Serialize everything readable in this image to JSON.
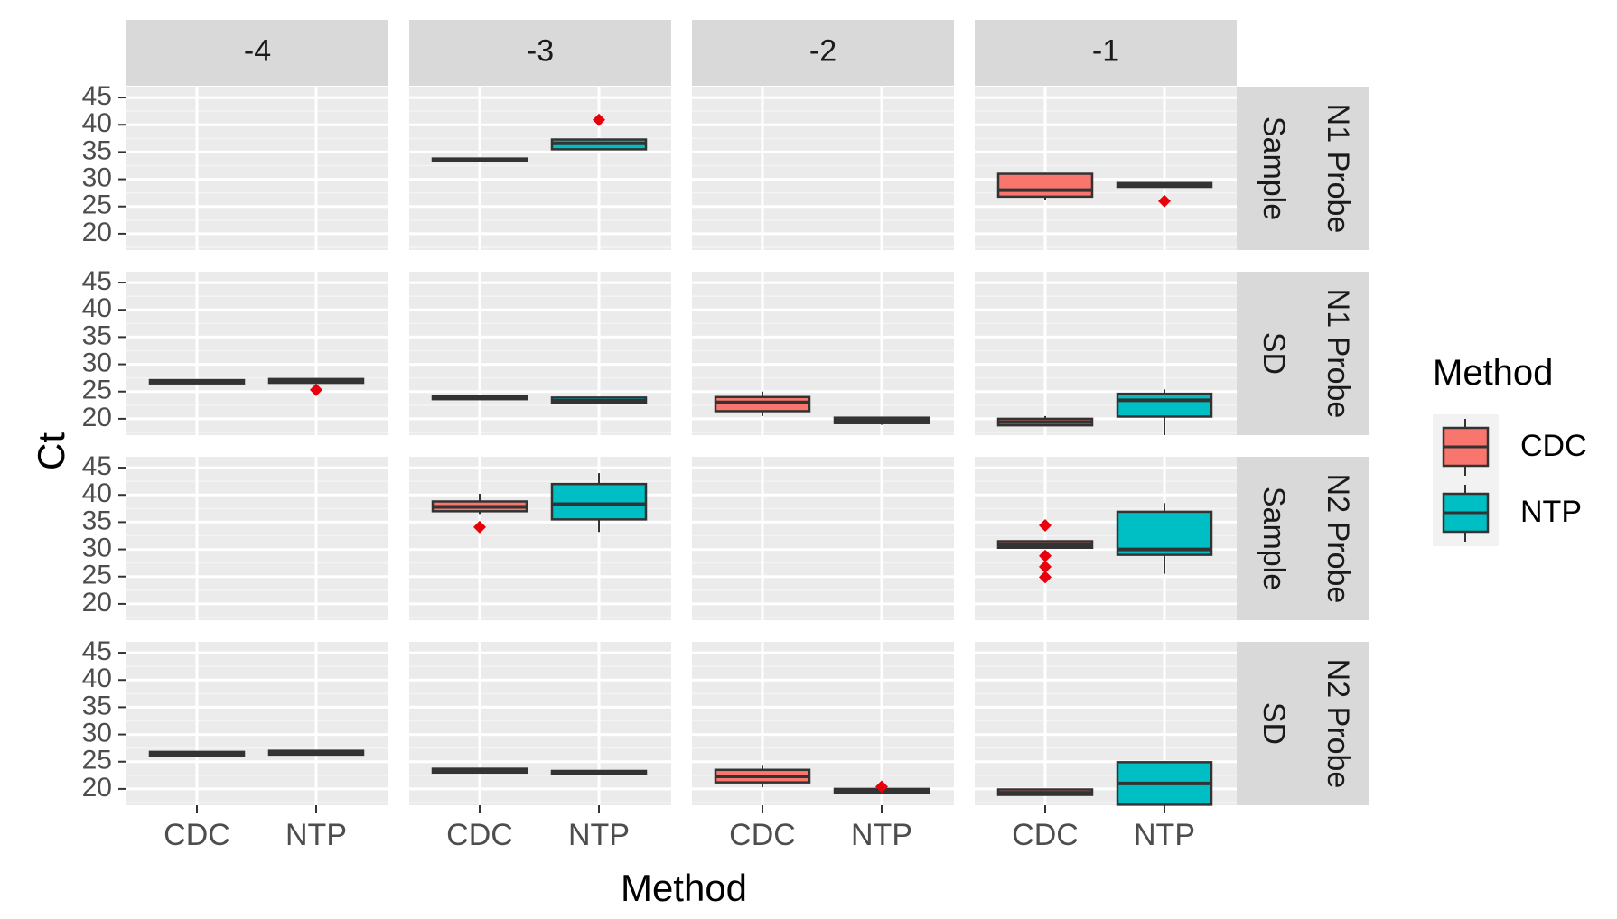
{
  "chart_data": {
    "type": "box",
    "xlabel": "Method",
    "ylabel": "Ct",
    "ylim": [
      17,
      47
    ],
    "y_ticks": [
      "20",
      "25",
      "30",
      "35",
      "40",
      "45"
    ],
    "x_categories": [
      "CDC",
      "NTP"
    ],
    "col_facets": [
      "-4",
      "-3",
      "-2",
      "-1"
    ],
    "row_facets": [
      [
        "Sample",
        "N1 Probe"
      ],
      [
        "SD",
        "N1 Probe"
      ],
      [
        "Sample",
        "N2 Probe"
      ],
      [
        "SD",
        "N2 Probe"
      ]
    ],
    "legend": {
      "title": "Method",
      "position": "right",
      "entries": [
        {
          "label": "CDC",
          "color": "#F8766D"
        },
        {
          "label": "NTP",
          "color": "#00BFC4"
        }
      ]
    },
    "outlier_color": "#E8000B",
    "grid": true,
    "boxes": [
      {
        "row": 0,
        "col": 1,
        "method": "CDC",
        "lower": 33.1,
        "q1": 33.3,
        "median": 33.5,
        "q3": 33.8,
        "upper": 34.0,
        "outliers": []
      },
      {
        "row": 0,
        "col": 1,
        "method": "NTP",
        "lower": 35.3,
        "q1": 35.5,
        "median": 36.6,
        "q3": 37.3,
        "upper": 37.5,
        "outliers": [
          40.9
        ]
      },
      {
        "row": 0,
        "col": 3,
        "method": "CDC",
        "lower": 26.2,
        "q1": 26.8,
        "median": 28.0,
        "q3": 31.0,
        "upper": 31.2,
        "outliers": []
      },
      {
        "row": 0,
        "col": 3,
        "method": "NTP",
        "lower": 28.4,
        "q1": 28.6,
        "median": 29.0,
        "q3": 29.3,
        "upper": 29.5,
        "outliers": [
          26.0
        ]
      },
      {
        "row": 1,
        "col": 0,
        "method": "CDC",
        "lower": 26.4,
        "q1": 26.5,
        "median": 26.8,
        "q3": 27.1,
        "upper": 27.2,
        "outliers": []
      },
      {
        "row": 1,
        "col": 0,
        "method": "NTP",
        "lower": 26.4,
        "q1": 26.6,
        "median": 26.9,
        "q3": 27.3,
        "upper": 27.4,
        "outliers": [
          25.3
        ]
      },
      {
        "row": 1,
        "col": 1,
        "method": "CDC",
        "lower": 23.5,
        "q1": 23.6,
        "median": 23.8,
        "q3": 24.1,
        "upper": 24.2,
        "outliers": []
      },
      {
        "row": 1,
        "col": 1,
        "method": "NTP",
        "lower": 22.9,
        "q1": 23.0,
        "median": 23.3,
        "q3": 23.9,
        "upper": 24.0,
        "outliers": []
      },
      {
        "row": 1,
        "col": 2,
        "method": "CDC",
        "lower": 20.5,
        "q1": 21.4,
        "median": 23.0,
        "q3": 24.0,
        "upper": 25.0,
        "outliers": []
      },
      {
        "row": 1,
        "col": 2,
        "method": "NTP",
        "lower": 18.9,
        "q1": 19.2,
        "median": 19.7,
        "q3": 20.2,
        "upper": 20.4,
        "outliers": []
      },
      {
        "row": 1,
        "col": 3,
        "method": "CDC",
        "lower": 18.6,
        "q1": 18.8,
        "median": 19.4,
        "q3": 20.0,
        "upper": 20.5,
        "outliers": []
      },
      {
        "row": 1,
        "col": 3,
        "method": "NTP",
        "lower": 17.0,
        "q1": 20.4,
        "median": 23.4,
        "q3": 24.6,
        "upper": 25.4,
        "outliers": []
      },
      {
        "row": 2,
        "col": 1,
        "method": "CDC",
        "lower": 36.5,
        "q1": 37.0,
        "median": 37.8,
        "q3": 38.8,
        "upper": 40.2,
        "outliers": [
          34.1
        ]
      },
      {
        "row": 2,
        "col": 1,
        "method": "NTP",
        "lower": 33.2,
        "q1": 35.5,
        "median": 38.3,
        "q3": 42.0,
        "upper": 44.0,
        "outliers": []
      },
      {
        "row": 2,
        "col": 3,
        "method": "CDC",
        "lower": 30.1,
        "q1": 30.3,
        "median": 30.8,
        "q3": 31.5,
        "upper": 31.6,
        "outliers": [
          34.4,
          28.8,
          26.8,
          24.9
        ]
      },
      {
        "row": 2,
        "col": 3,
        "method": "NTP",
        "lower": 25.5,
        "q1": 29.0,
        "median": 30.0,
        "q3": 36.9,
        "upper": 38.5,
        "outliers": []
      },
      {
        "row": 3,
        "col": 0,
        "method": "CDC",
        "lower": 26.0,
        "q1": 26.1,
        "median": 26.4,
        "q3": 26.8,
        "upper": 26.9,
        "outliers": []
      },
      {
        "row": 3,
        "col": 0,
        "method": "NTP",
        "lower": 26.2,
        "q1": 26.3,
        "median": 26.6,
        "q3": 27.0,
        "upper": 27.1,
        "outliers": []
      },
      {
        "row": 3,
        "col": 1,
        "method": "CDC",
        "lower": 22.9,
        "q1": 23.0,
        "median": 23.3,
        "q3": 23.7,
        "upper": 23.8,
        "outliers": []
      },
      {
        "row": 3,
        "col": 1,
        "method": "NTP",
        "lower": 22.6,
        "q1": 22.7,
        "median": 23.0,
        "q3": 23.3,
        "upper": 23.4,
        "outliers": []
      },
      {
        "row": 3,
        "col": 2,
        "method": "CDC",
        "lower": 20.3,
        "q1": 21.2,
        "median": 22.3,
        "q3": 23.5,
        "upper": 24.4,
        "outliers": []
      },
      {
        "row": 3,
        "col": 2,
        "method": "NTP",
        "lower": 19.1,
        "q1": 19.2,
        "median": 19.6,
        "q3": 20.0,
        "upper": 20.1,
        "outliers": [
          20.4
        ]
      },
      {
        "row": 3,
        "col": 3,
        "method": "CDC",
        "lower": 18.8,
        "q1": 18.9,
        "median": 19.3,
        "q3": 19.9,
        "upper": 20.0,
        "outliers": []
      },
      {
        "row": 3,
        "col": 3,
        "method": "NTP",
        "lower": 16.9,
        "q1": 17.1,
        "median": 21.0,
        "q3": 24.9,
        "upper": 25.1,
        "outliers": []
      }
    ]
  }
}
